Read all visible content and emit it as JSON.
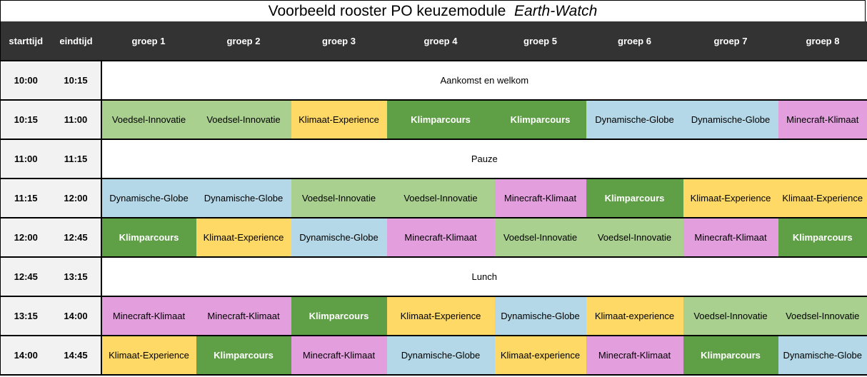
{
  "title": {
    "prefix": "Voorbeeld rooster PO keuzemodule  ",
    "emphasis": "Earth-Watch"
  },
  "colors": {
    "Voedsel-Innovatie": "#a9d08e",
    "Klimaat-Experience": "#ffd966",
    "Klimaat-experience": "#ffd966",
    "Klimparcours": "#5f9f46",
    "Dynamische-Globe": "#b4d8e7",
    "Minecraft-Klimaat": "#e39ede",
    "header_bg": "#333333",
    "time_bg": "#f2f2f2"
  },
  "headers": [
    "starttijd",
    "eindtijd",
    "groep 1",
    "groep 2",
    "groep 3",
    "groep 4",
    "groep 5",
    "groep 6",
    "groep 7",
    "groep 8"
  ],
  "rows": [
    {
      "start": "10:00",
      "end": "10:15",
      "span": "Aankomst en welkom"
    },
    {
      "start": "10:15",
      "end": "11:00",
      "cells": [
        "Voedsel-Innovatie",
        "Voedsel-Innovatie",
        "Klimaat-Experience",
        "Klimparcours",
        "Klimparcours",
        "Dynamische-Globe",
        "Dynamische-Globe",
        "Minecraft-Klimaat"
      ]
    },
    {
      "start": "11:00",
      "end": "11:15",
      "span": "Pauze"
    },
    {
      "start": "11:15",
      "end": "12:00",
      "cells": [
        "Dynamische-Globe",
        "Dynamische-Globe",
        "Voedsel-Innovatie",
        "Voedsel-Innovatie",
        "Minecraft-Klimaat",
        "Klimparcours",
        "Klimaat-Experience",
        "Klimaat-Experience"
      ]
    },
    {
      "start": "12:00",
      "end": "12:45",
      "cells": [
        "Klimparcours",
        "Klimaat-Experience",
        "Dynamische-Globe",
        "Minecraft-Klimaat",
        "Voedsel-Innovatie",
        "Voedsel-Innovatie",
        "Minecraft-Klimaat",
        "Klimparcours"
      ]
    },
    {
      "start": "12:45",
      "end": "13:15",
      "span": "Lunch"
    },
    {
      "start": "13:15",
      "end": "14:00",
      "cells": [
        "Minecraft-Klimaat",
        "Minecraft-Klimaat",
        "Klimparcours",
        "Klimaat-Experience",
        "Dynamische-Globe",
        "Klimaat-experience",
        "Voedsel-Innovatie",
        "Voedsel-Innovatie"
      ]
    },
    {
      "start": "14:00",
      "end": "14:45",
      "cells": [
        "Klimaat-Experience",
        "Klimparcours",
        "Minecraft-Klimaat",
        "Dynamische-Globe",
        "Klimaat-experience",
        "Minecraft-Klimaat",
        "Klimparcours",
        "Dynamische-Globe"
      ]
    }
  ]
}
